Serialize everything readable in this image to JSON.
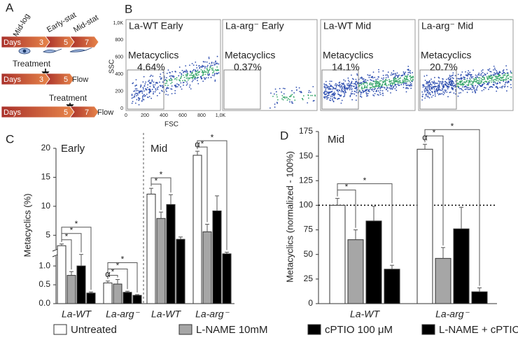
{
  "panel_labels": [
    "A",
    "B",
    "C",
    "D"
  ],
  "timeline": {
    "stages": [
      "Mid-log",
      "Early-stat",
      "Mid-stat"
    ],
    "rows": [
      {
        "labels": [
          "Days",
          "3",
          "5",
          "7"
        ]
      },
      {
        "treatment": "Treatment",
        "labels": [
          "Days",
          "3",
          "5"
        ],
        "end": "Flow"
      },
      {
        "treatment": "Treatment",
        "labels": [
          "Days",
          "5",
          "7"
        ],
        "end": "Flow"
      }
    ]
  },
  "flow": {
    "y_label": "SSC",
    "x_label": "FSC",
    "gate_title": "Metacyclics",
    "xlim": [
      0,
      1000
    ],
    "ylim": [
      0,
      1000
    ],
    "xticks": [
      0,
      200,
      400,
      600,
      800,
      {
        "value": 1000,
        "label": "1,0K"
      }
    ],
    "yticks": [
      0,
      200,
      400,
      600,
      800,
      {
        "value": 1000,
        "label": "1,0K"
      }
    ],
    "plots": [
      {
        "title": "La-WT Early",
        "gate": "4.64%"
      },
      {
        "title": "La-arg⁻ Early",
        "gate": "0.37%"
      },
      {
        "title": "La-WT Mid",
        "gate": "14.1%"
      },
      {
        "title": "La-arg⁻ Mid",
        "gate": "20.7%"
      }
    ]
  },
  "chart_data": [
    {
      "type": "bar",
      "y_label": "Metacyclics (%)",
      "categories": [
        "La-WT",
        "La-arg⁻",
        "La-WT",
        "La-arg⁻"
      ],
      "sections": [
        "Early",
        "Mid"
      ],
      "series": [
        {
          "name": "Untreated",
          "color": "#ffffff",
          "values": [
            3.2,
            0.55,
            12.1,
            18.8
          ],
          "errors": [
            0.3,
            0.05,
            1.0,
            0.7
          ]
        },
        {
          "name": "L-NAME 10mM",
          "color": "#a6a6a6",
          "values": [
            0.75,
            0.52,
            7.9,
            5.6
          ],
          "errors": [
            0.1,
            0.12,
            1.1,
            1.3
          ]
        },
        {
          "name": "cPTIO 100 μM",
          "color": "#000000",
          "values": [
            1.0,
            0.3,
            10.3,
            9.2
          ],
          "errors": [
            0.35,
            0.03,
            1.7,
            2.6
          ]
        },
        {
          "name": "L-NAME + cPTIO",
          "color": "#000000",
          "values": [
            0.28,
            0.22,
            4.3,
            1.5
          ],
          "errors": [
            0.03,
            0.02,
            0.4,
            0.4
          ]
        }
      ],
      "ylim": [
        0,
        20
      ],
      "y_break": [
        1.3,
        2.5
      ],
      "yticks": [
        {
          "value": 0,
          "label": "0.0"
        },
        {
          "value": 0.5,
          "label": "0.5"
        },
        {
          "value": 1,
          "label": "1.0"
        },
        5,
        10,
        15,
        20
      ],
      "significance": [
        {
          "category": 0,
          "from": 0,
          "to": 1,
          "label": "*"
        },
        {
          "category": 0,
          "from": 0,
          "to": 2,
          "label": "*"
        },
        {
          "category": 0,
          "from": 0,
          "to": 3,
          "label": "*"
        },
        {
          "category": 1,
          "from": 0,
          "to": 1,
          "label": "*"
        },
        {
          "category": 1,
          "from": 0,
          "to": 2,
          "label": "*"
        },
        {
          "category": 1,
          "from": 0,
          "to": 3,
          "label": "*"
        },
        {
          "category": 2,
          "from": 0,
          "to": 1,
          "label": "*"
        },
        {
          "category": 2,
          "from": 0,
          "to": 2,
          "label": "*"
        },
        {
          "category": 3,
          "from": 0,
          "to": 1,
          "label": "*"
        },
        {
          "category": 3,
          "from": 0,
          "to": 3,
          "label": "*"
        }
      ],
      "markers": [
        {
          "category": 1,
          "series": 0,
          "label": "α"
        },
        {
          "category": 3,
          "series": 0,
          "label": "α"
        }
      ]
    },
    {
      "type": "bar",
      "y_label": "Metacyclics (normalized - 100%)",
      "annotation": "Mid",
      "categories": [
        "La-WT",
        "La-arg⁻"
      ],
      "series": [
        {
          "color": "#ffffff",
          "values": [
            100,
            157
          ],
          "errors": [
            7,
            5
          ]
        },
        {
          "color": "#a6a6a6",
          "values": [
            65,
            46
          ],
          "errors": [
            10,
            11
          ]
        },
        {
          "color": "#000000",
          "values": [
            84,
            76
          ],
          "errors": [
            15,
            22
          ]
        },
        {
          "color": "#000000",
          "values": [
            35,
            12
          ],
          "errors": [
            4,
            4
          ]
        }
      ],
      "ylim": [
        0,
        175
      ],
      "yticks": [
        0,
        25,
        50,
        75,
        100,
        125,
        150,
        175
      ],
      "reference_line": 100,
      "significance": [
        {
          "category": 0,
          "from": 0,
          "to": 1,
          "label": "*"
        },
        {
          "category": 0,
          "from": 0,
          "to": 3,
          "label": "*"
        },
        {
          "category": 1,
          "from": 0,
          "to": 1,
          "label": "*"
        },
        {
          "category": 1,
          "from": 0,
          "to": 3,
          "label": "*"
        }
      ],
      "markers": [
        {
          "category": 1,
          "series": 0,
          "label": "α"
        }
      ]
    }
  ]
}
